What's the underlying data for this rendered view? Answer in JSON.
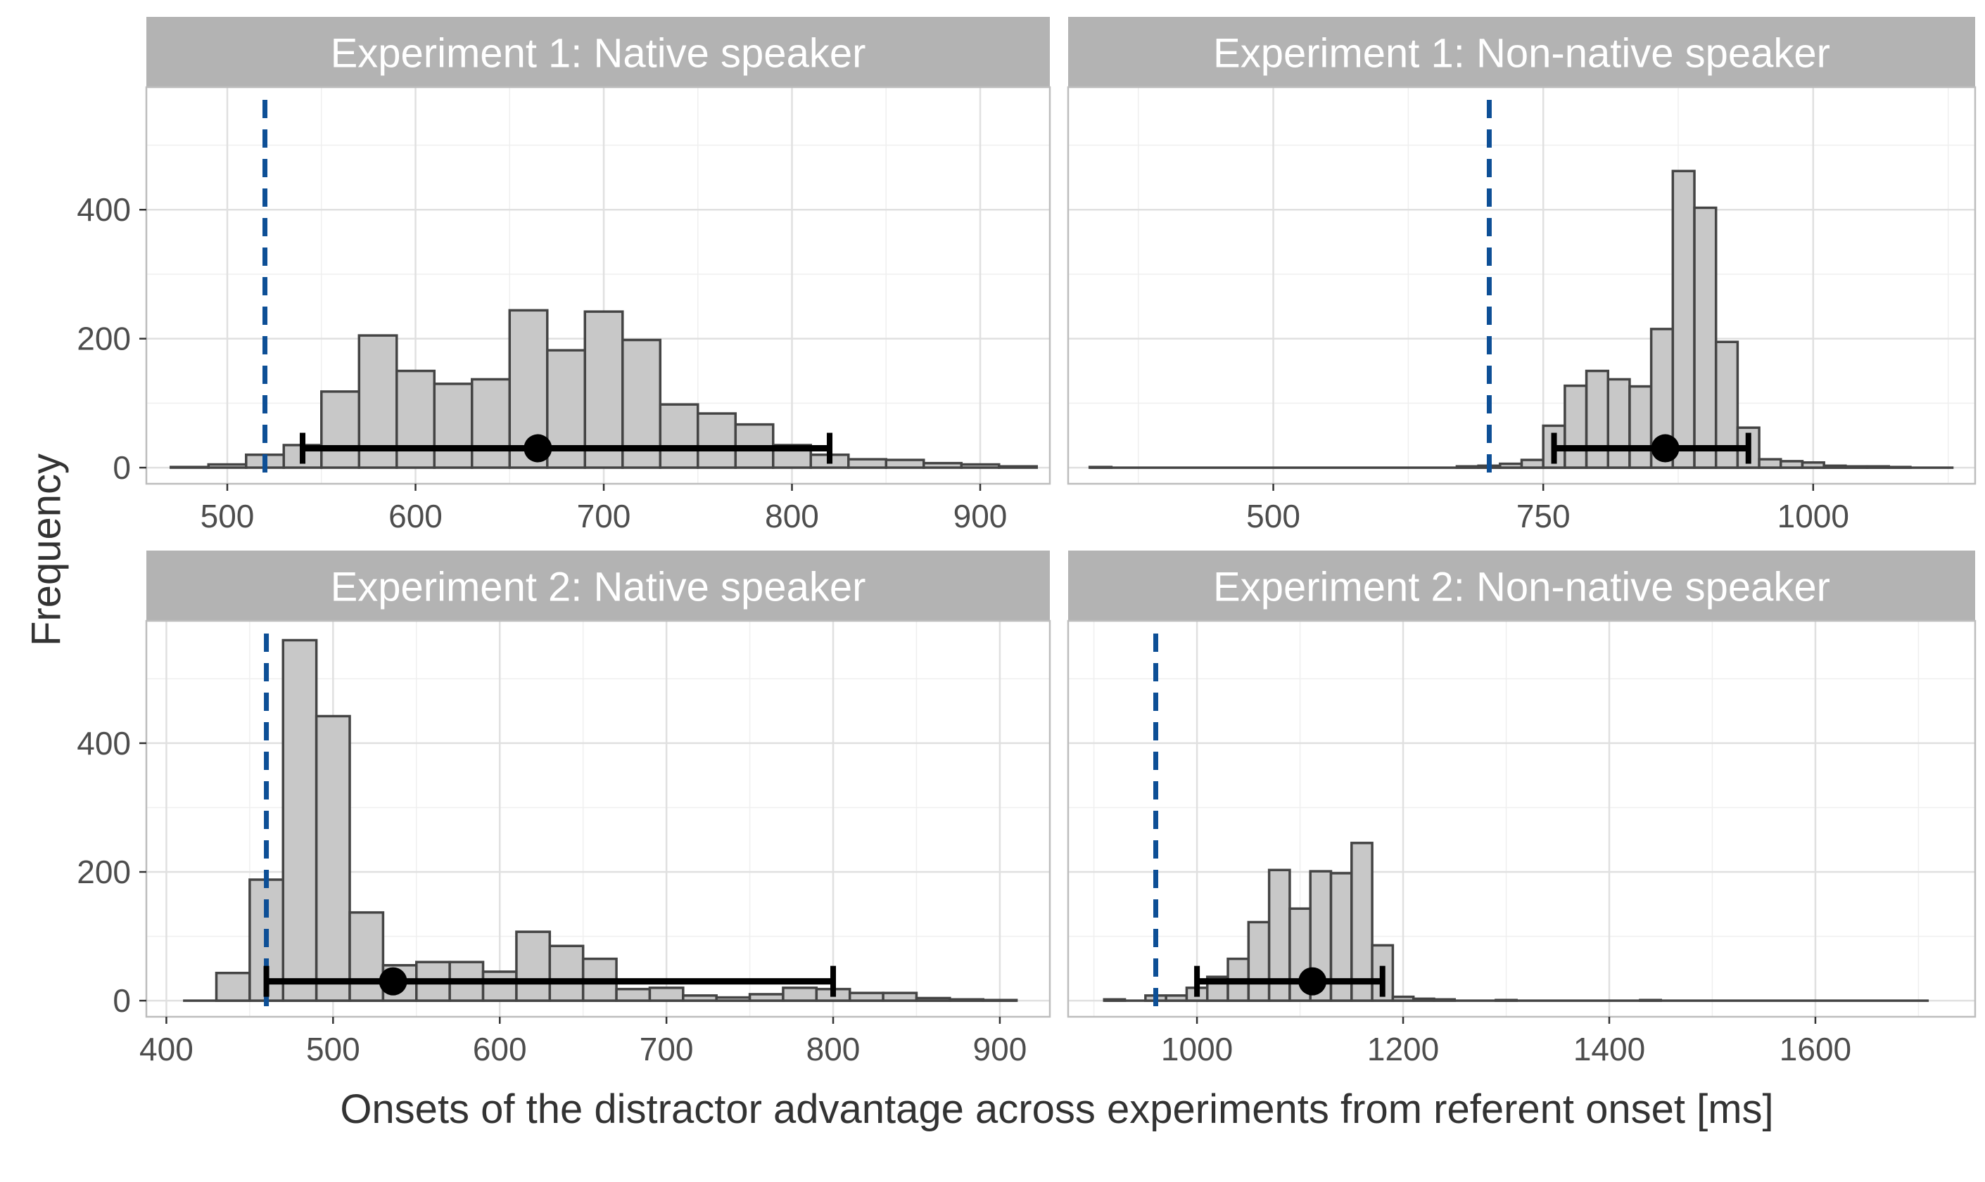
{
  "figure": {
    "ylabel": "Frequency",
    "xlabel": "Onsets of the distractor advantage across experiments from referent onset [ms]"
  },
  "colors": {
    "strip_bg": "#b3b3b3",
    "strip_text": "#ffffff",
    "bar_fill": "#c8c8c8",
    "bar_stroke": "#444444",
    "grid_major": "#e0e0e0",
    "grid_minor": "#efefef",
    "panel_border": "#bdbdbd",
    "vline": "#0d4f96",
    "errorbar": "#000000",
    "tick_text": "#4d4d4d",
    "axis_title": "#333333"
  },
  "chart_data": [
    {
      "type": "bar",
      "panel": "Experiment 1: Native speaker",
      "title": "Experiment 1: Native speaker",
      "xlim": [
        457,
        937
      ],
      "ylim": [
        -25,
        590
      ],
      "x_ticks": [
        500,
        600,
        700,
        800,
        900
      ],
      "y_ticks": [
        0,
        200,
        400
      ],
      "bin_width": 20,
      "bin_starts": [
        470,
        490,
        510,
        530,
        550,
        570,
        590,
        610,
        630,
        650,
        670,
        690,
        710,
        730,
        750,
        770,
        790,
        810,
        830,
        850,
        870,
        890,
        910
      ],
      "values": [
        1,
        5,
        20,
        35,
        118,
        205,
        150,
        130,
        137,
        244,
        182,
        242,
        198,
        98,
        84,
        67,
        35,
        20,
        13,
        12,
        7,
        5,
        2
      ],
      "dashed_line_x": 520,
      "point_estimate": 665,
      "interval": [
        540,
        820
      ],
      "interval_y": 30
    },
    {
      "type": "bar",
      "panel": "Experiment 1: Non-native speaker",
      "title": "Experiment 1: Non-native speaker",
      "xlim": [
        310,
        1150
      ],
      "ylim": [
        -25,
        590
      ],
      "x_ticks": [
        500,
        750,
        1000
      ],
      "y_ticks": [
        0,
        200,
        400
      ],
      "bin_width": 20,
      "bin_starts": [
        330,
        670,
        690,
        710,
        730,
        750,
        770,
        790,
        810,
        830,
        850,
        870,
        890,
        910,
        930,
        950,
        970,
        990,
        1010,
        1030,
        1050,
        1070
      ],
      "values": [
        1,
        2,
        3,
        6,
        12,
        65,
        127,
        150,
        137,
        126,
        215,
        460,
        403,
        195,
        62,
        13,
        10,
        8,
        3,
        2,
        2,
        1
      ],
      "dashed_line_x": 700,
      "point_estimate": 863,
      "interval": [
        760,
        940
      ],
      "interval_y": 30,
      "baseline_range": [
        330,
        1130
      ]
    },
    {
      "type": "bar",
      "panel": "Experiment 2: Native speaker",
      "title": "Experiment 2: Native speaker",
      "xlim": [
        388,
        930
      ],
      "ylim": [
        -25,
        590
      ],
      "x_ticks": [
        400,
        500,
        600,
        700,
        800,
        900
      ],
      "y_ticks": [
        0,
        200,
        400
      ],
      "bin_width": 20,
      "bin_starts": [
        430,
        450,
        470,
        490,
        510,
        530,
        550,
        570,
        590,
        610,
        630,
        650,
        670,
        690,
        710,
        730,
        750,
        770,
        790,
        810,
        830,
        850,
        870,
        890
      ],
      "values": [
        43,
        188,
        560,
        442,
        137,
        55,
        60,
        60,
        45,
        107,
        85,
        65,
        18,
        20,
        8,
        5,
        10,
        20,
        18,
        12,
        12,
        4,
        2,
        1
      ],
      "dashed_line_x": 460,
      "point_estimate": 536,
      "interval": [
        460,
        800
      ],
      "interval_y": 30,
      "baseline_range": [
        410,
        910
      ]
    },
    {
      "type": "bar",
      "panel": "Experiment 2: Non-native speaker",
      "title": "Experiment 2: Non-native speaker",
      "xlim": [
        875,
        1755
      ],
      "ylim": [
        -25,
        590
      ],
      "x_ticks": [
        1000,
        1200,
        1400,
        1600
      ],
      "y_ticks": [
        0,
        200,
        400
      ],
      "bin_width": 20,
      "bin_starts": [
        910,
        950,
        970,
        990,
        1010,
        1030,
        1050,
        1070,
        1090,
        1110,
        1130,
        1150,
        1170,
        1190,
        1210,
        1230,
        1290,
        1430
      ],
      "values": [
        2,
        8,
        8,
        20,
        37,
        65,
        122,
        203,
        143,
        201,
        198,
        245,
        86,
        6,
        3,
        2,
        1,
        1
      ],
      "dashed_line_x": 960,
      "point_estimate": 1112,
      "interval": [
        1000,
        1180
      ],
      "interval_y": 30,
      "baseline_range": [
        910,
        1710
      ]
    }
  ]
}
